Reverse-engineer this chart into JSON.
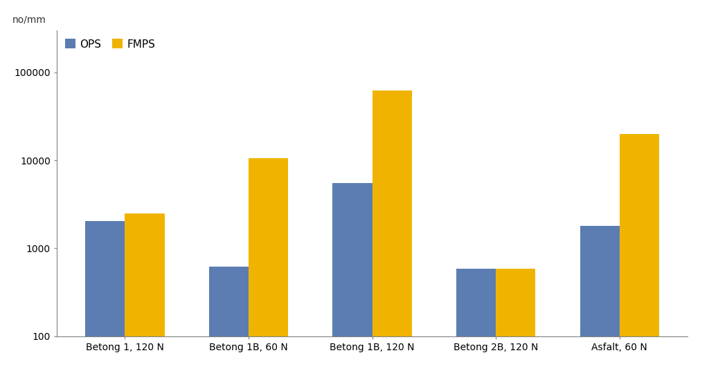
{
  "categories": [
    "Betong 1, 120 N",
    "Betong 1B, 60 N",
    "Betong 1B, 120 N",
    "Betong 2B, 120 N",
    "Asfalt, 60 N"
  ],
  "OPS": [
    2050,
    620,
    5500,
    590,
    1800
  ],
  "FMPS": [
    2500,
    10500,
    62000,
    590,
    20000
  ],
  "ops_color": "#5b7db1",
  "fmps_color": "#f0b400",
  "ylabel": "no/mm",
  "ylim_min": 100,
  "ylim_max": 300000,
  "bar_width": 0.32,
  "legend_labels": [
    "OPS",
    "FMPS"
  ],
  "bg_color": "#ffffff",
  "grid_color": "#d0d0d0",
  "border_color": "#808080",
  "tick_label_fontsize": 10,
  "legend_fontsize": 11
}
